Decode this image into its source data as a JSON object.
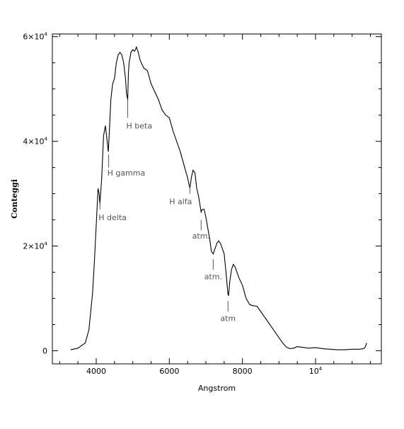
{
  "chart_data": {
    "type": "line",
    "title": "",
    "xlabel": "Angstrom",
    "ylabel": "Conteggi",
    "xlim": [
      2800,
      11800
    ],
    "ylim": [
      -2500,
      60500
    ],
    "x_ticks": [
      {
        "value": 4000,
        "label": "4000"
      },
      {
        "value": 6000,
        "label": "6000"
      },
      {
        "value": 8000,
        "label": "8000"
      },
      {
        "value": 10000,
        "label": "10",
        "sup": "4"
      }
    ],
    "y_ticks": [
      {
        "value": 0,
        "label": "0",
        "sup": ""
      },
      {
        "value": 20000,
        "label": "2×10",
        "sup": "4"
      },
      {
        "value": 40000,
        "label": "4×10",
        "sup": "4"
      },
      {
        "value": 60000,
        "label": "6×10",
        "sup": "4"
      }
    ],
    "grid": false,
    "series": [
      {
        "x": [
          3300,
          3500,
          3700,
          3800,
          3900,
          3950,
          4000,
          4050,
          4080,
          4100,
          4150,
          4200,
          4250,
          4300,
          4330,
          4360,
          4400,
          4450,
          4500,
          4550,
          4600,
          4650,
          4700,
          4750,
          4800,
          4830,
          4861,
          4880,
          4900,
          4950,
          5000,
          5050,
          5100,
          5150,
          5200,
          5300,
          5400,
          5500,
          5600,
          5700,
          5800,
          5900,
          6000,
          6100,
          6200,
          6300,
          6400,
          6500,
          6563,
          6600,
          6650,
          6700,
          6750,
          6800,
          6870,
          6900,
          6950,
          7000,
          7050,
          7100,
          7150,
          7200,
          7250,
          7300,
          7350,
          7400,
          7500,
          7550,
          7600,
          7620,
          7650,
          7700,
          7750,
          7800,
          7850,
          7900,
          8000,
          8100,
          8200,
          8300,
          8400,
          8500,
          8600,
          8700,
          8800,
          8900,
          9000,
          9100,
          9200,
          9300,
          9400,
          9500,
          9600,
          9700,
          9800,
          10000,
          10200,
          10400,
          10600,
          10800,
          11000,
          11200,
          11300,
          11350,
          11400
        ],
        "y": [
          200,
          500,
          1500,
          4000,
          11000,
          17000,
          24000,
          31000,
          30000,
          28000,
          33000,
          41000,
          43000,
          40000,
          38000,
          42000,
          48000,
          51000,
          52000,
          55000,
          56500,
          57000,
          56500,
          55000,
          52000,
          49000,
          48000,
          53000,
          55000,
          57000,
          57500,
          57200,
          58000,
          57000,
          55500,
          54000,
          53500,
          51000,
          49500,
          48000,
          46000,
          45000,
          44500,
          42000,
          40000,
          38000,
          35500,
          33000,
          31000,
          33000,
          34500,
          34000,
          31000,
          29500,
          26500,
          27000,
          27000,
          25500,
          23500,
          21500,
          19000,
          18500,
          19500,
          20500,
          21000,
          20500,
          18500,
          15000,
          11000,
          10500,
          13000,
          15500,
          16500,
          16000,
          15000,
          14000,
          12500,
          10000,
          8800,
          8600,
          8500,
          7500,
          6500,
          5500,
          4500,
          3500,
          2500,
          1500,
          700,
          400,
          500,
          800,
          700,
          600,
          500,
          600,
          400,
          300,
          200,
          200,
          300,
          300,
          400,
          600,
          1500
        ]
      }
    ],
    "annotations": [
      {
        "text": "H beta",
        "x": 4861,
        "tick_top": 48000,
        "tick_bottom": 44500,
        "label_y": 43000,
        "anchor": "start"
      },
      {
        "text": "H gamma",
        "x": 4340,
        "tick_top": 37500,
        "tick_bottom": 35000,
        "label_y": 34000,
        "anchor": "start"
      },
      {
        "text": "H delta",
        "x": 4102,
        "tick_top": 28500,
        "tick_bottom": 27000,
        "label_y": 25500,
        "anchor": "start"
      },
      {
        "text": "H alfa",
        "x": 6563,
        "tick_top": 30000,
        "tick_bottom": 31500,
        "label_y": 28500,
        "anchor": "end"
      },
      {
        "text": "atm.",
        "x": 6870,
        "tick_top": 25000,
        "tick_bottom": 23000,
        "label_y": 22000,
        "anchor": "middle"
      },
      {
        "text": "atm.",
        "x": 7200,
        "tick_top": 17500,
        "tick_bottom": 15500,
        "label_y": 14200,
        "anchor": "middle"
      },
      {
        "text": "atm",
        "x": 7605,
        "tick_top": 9500,
        "tick_bottom": 7500,
        "label_y": 6200,
        "anchor": "middle"
      }
    ]
  }
}
